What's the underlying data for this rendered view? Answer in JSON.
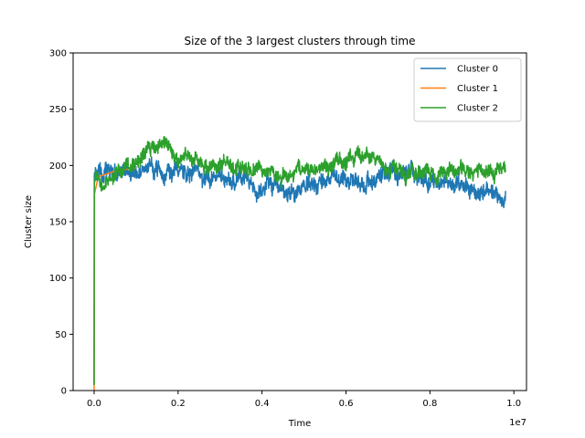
{
  "chart_data": {
    "type": "line",
    "title": "Size of the 3 largest clusters through time",
    "xlabel": "Time",
    "ylabel": "Cluster size",
    "x_offset_label": "1e7",
    "xlim": [
      -0.05,
      1.03
    ],
    "ylim": [
      0,
      300
    ],
    "x_scale_note": "x values shown in units of 1e7",
    "xticks": [
      0.0,
      0.2,
      0.4,
      0.6,
      0.8,
      1.0
    ],
    "xtick_labels": [
      "0.0",
      "0.2",
      "0.4",
      "0.6",
      "0.8",
      "1.0"
    ],
    "yticks": [
      0,
      50,
      100,
      150,
      200,
      250,
      300
    ],
    "ytick_labels": [
      "0",
      "50",
      "100",
      "150",
      "200",
      "250",
      "300"
    ],
    "grid": false,
    "legend_placement": "top-right",
    "series": [
      {
        "name": "Cluster 0",
        "color": "#1f77b4",
        "noise": 7,
        "x": [
          0.0,
          0.0005,
          0.001,
          0.005,
          0.02,
          0.05,
          0.1,
          0.15,
          0.2,
          0.25,
          0.3,
          0.35,
          0.38,
          0.42,
          0.46,
          0.5,
          0.55,
          0.6,
          0.65,
          0.7,
          0.75,
          0.8,
          0.85,
          0.88,
          0.92,
          0.95,
          0.98
        ],
        "y": [
          5,
          190,
          192,
          193,
          194,
          193,
          195,
          196,
          195,
          192,
          189,
          188,
          178,
          182,
          176,
          180,
          187,
          188,
          185,
          193,
          196,
          188,
          184,
          180,
          178,
          172,
          172
        ]
      },
      {
        "name": "Cluster 1",
        "color": "#ff7f0e",
        "noise": 0,
        "x": [
          0.0,
          0.001,
          0.01,
          0.05,
          0.1
        ],
        "y": [
          0,
          175,
          190,
          195,
          198
        ]
      },
      {
        "name": "Cluster 2",
        "color": "#2ca02c",
        "noise": 6,
        "x": [
          0.0,
          0.0005,
          0.001,
          0.005,
          0.02,
          0.04,
          0.06,
          0.1,
          0.13,
          0.17,
          0.2,
          0.25,
          0.3,
          0.35,
          0.4,
          0.45,
          0.5,
          0.55,
          0.6,
          0.65,
          0.7,
          0.75,
          0.8,
          0.85,
          0.9,
          0.95,
          0.98
        ],
        "y": [
          5,
          180,
          185,
          190,
          185,
          190,
          198,
          203,
          212,
          220,
          210,
          202,
          200,
          198,
          198,
          190,
          195,
          200,
          205,
          207,
          198,
          195,
          193,
          196,
          198,
          193,
          195
        ]
      }
    ]
  }
}
